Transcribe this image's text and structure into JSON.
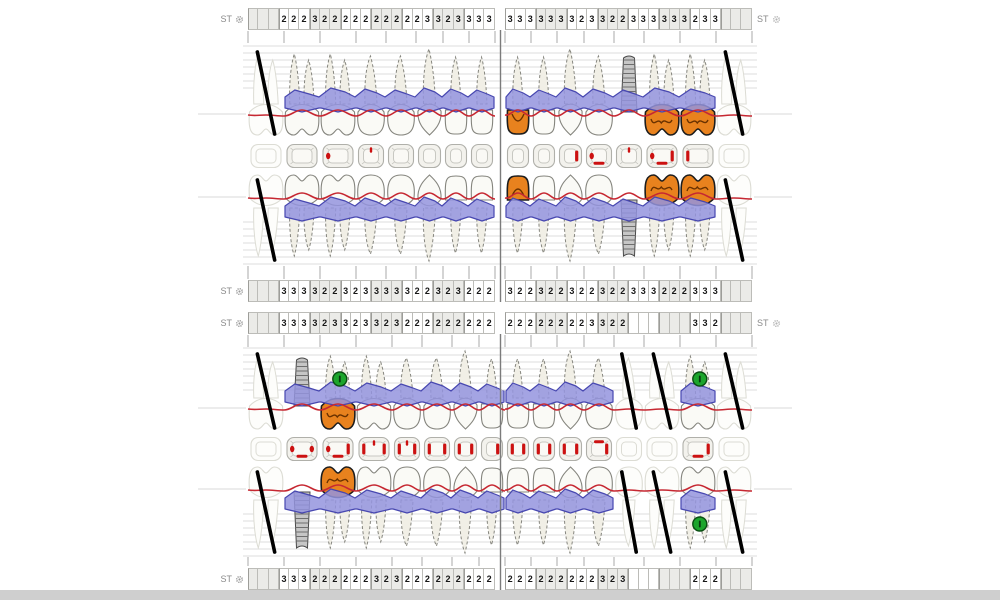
{
  "labels": {
    "st": "ST"
  },
  "colors": {
    "band_fill": "rgba(148,148,222,0.85)",
    "band_stroke": "#4747b0",
    "gingiva_line": "#c62832",
    "crown_restoration": "#e8821e",
    "crown_outline": "#1d1d1d",
    "tooth_fill": "#fafaf6",
    "tooth_stroke": "#85857e",
    "root_fill": "#f1efe6",
    "ghost_stroke": "#dcdcd4",
    "ghost_fill": "#fdfdfb",
    "implant_fill": "#c6c6c6",
    "implant_stroke": "#4a4a4a",
    "implant_ridge": "#6e6e6e",
    "marker_green": "#1ca52c",
    "marker_green_stroke": "#0a4d12",
    "mark_red": "#cc1111",
    "grid_line": "#dedede",
    "tick": "#a8a8a8",
    "divider": "#7b7b7b",
    "slash": "#000000"
  },
  "upper_chart": {
    "left": {
      "st_top": [
        "",
        "",
        "",
        "2",
        "2",
        "2",
        "3",
        "2",
        "2",
        "2",
        "2",
        "2",
        "2",
        "2",
        "2",
        "2",
        "2",
        "3",
        "3",
        "2",
        "3",
        "3",
        "3",
        "3"
      ],
      "st_bottom": [
        "",
        "",
        "",
        "3",
        "3",
        "3",
        "3",
        "2",
        "2",
        "3",
        "2",
        "3",
        "3",
        "3",
        "3",
        "3",
        "2",
        "2",
        "3",
        "2",
        "3",
        "2",
        "2",
        "2"
      ],
      "teeth": [
        {
          "type": "molar",
          "status": "missing"
        },
        {
          "type": "molar",
          "status": "present"
        },
        {
          "type": "molar",
          "status": "present"
        },
        {
          "type": "premolar",
          "status": "present"
        },
        {
          "type": "premolar",
          "status": "present"
        },
        {
          "type": "canine",
          "status": "present"
        },
        {
          "type": "incisor",
          "status": "present"
        },
        {
          "type": "incisor",
          "status": "present"
        }
      ],
      "occlusal": [
        [],
        [],
        [
          "l"
        ],
        [
          "t"
        ],
        [],
        [],
        [],
        []
      ]
    },
    "right": {
      "st_top": [
        "3",
        "3",
        "3",
        "3",
        "3",
        "3",
        "3",
        "2",
        "3",
        "3",
        "2",
        "2",
        "3",
        "3",
        "3",
        "3",
        "3",
        "3",
        "2",
        "3",
        "3",
        "",
        "",
        ""
      ],
      "st_bottom": [
        "3",
        "2",
        "2",
        "3",
        "2",
        "2",
        "3",
        "2",
        "2",
        "3",
        "2",
        "2",
        "3",
        "3",
        "3",
        "2",
        "2",
        "2",
        "3",
        "3",
        "3",
        "",
        "",
        ""
      ],
      "teeth": [
        {
          "type": "incisor",
          "status": "crown"
        },
        {
          "type": "incisor",
          "status": "present"
        },
        {
          "type": "canine",
          "status": "present"
        },
        {
          "type": "premolar",
          "status": "present"
        },
        {
          "type": "premolar",
          "status": "implant"
        },
        {
          "type": "molar",
          "status": "crown"
        },
        {
          "type": "molar",
          "status": "crown"
        },
        {
          "type": "molar",
          "status": "missing"
        }
      ],
      "occlusal": [
        [],
        [],
        [
          "R"
        ],
        [
          "l",
          "B"
        ],
        [
          "t"
        ],
        [
          "l",
          "B",
          "R"
        ],
        [
          "L"
        ],
        []
      ]
    }
  },
  "lower_chart": {
    "left": {
      "st_top": [
        "",
        "",
        "",
        "3",
        "3",
        "3",
        "3",
        "2",
        "3",
        "3",
        "2",
        "3",
        "3",
        "2",
        "3",
        "2",
        "2",
        "2",
        "2",
        "2",
        "2",
        "2",
        "2",
        "2"
      ],
      "st_bottom": [
        "",
        "",
        "",
        "3",
        "3",
        "3",
        "2",
        "2",
        "2",
        "2",
        "2",
        "2",
        "3",
        "2",
        "3",
        "2",
        "2",
        "2",
        "2",
        "2",
        "2",
        "2",
        "2",
        "2"
      ],
      "teeth": [
        {
          "type": "molar",
          "status": "missing"
        },
        {
          "type": "molar",
          "status": "implant"
        },
        {
          "type": "molar",
          "status": "crown",
          "green": [
            "top"
          ]
        },
        {
          "type": "molar",
          "status": "present"
        },
        {
          "type": "premolar",
          "status": "present"
        },
        {
          "type": "premolar",
          "status": "present"
        },
        {
          "type": "canine",
          "status": "present"
        },
        {
          "type": "incisor",
          "status": "present"
        }
      ],
      "occlusal": [
        [],
        [
          "l",
          "B",
          "r"
        ],
        [
          "l",
          "B",
          "R"
        ],
        [
          "t",
          "L",
          "R"
        ],
        [
          "t",
          "L",
          "R"
        ],
        [
          "L",
          "R"
        ],
        [
          "L",
          "R"
        ],
        [
          "R"
        ]
      ]
    },
    "right": {
      "st_top": [
        "2",
        "2",
        "2",
        "2",
        "2",
        "2",
        "2",
        "2",
        "3",
        "3",
        "2",
        "2",
        "",
        "",
        "",
        "",
        "",
        "",
        "3",
        "3",
        "2",
        "",
        "",
        ""
      ],
      "st_bottom": [
        "2",
        "2",
        "2",
        "2",
        "2",
        "2",
        "2",
        "2",
        "2",
        "3",
        "2",
        "3",
        "",
        "",
        "",
        "",
        "",
        "",
        "2",
        "2",
        "2",
        "",
        "",
        ""
      ],
      "teeth": [
        {
          "type": "incisor",
          "status": "present"
        },
        {
          "type": "incisor",
          "status": "present"
        },
        {
          "type": "canine",
          "status": "present"
        },
        {
          "type": "premolar",
          "status": "present"
        },
        {
          "type": "premolar",
          "status": "missing"
        },
        {
          "type": "molar",
          "status": "missing"
        },
        {
          "type": "molar",
          "status": "present",
          "green": [
            "top",
            "bottom"
          ]
        },
        {
          "type": "molar",
          "status": "missing"
        }
      ],
      "occlusal": [
        [
          "L",
          "R"
        ],
        [
          "L",
          "R"
        ],
        [
          "L",
          "R"
        ],
        [
          "T",
          "R"
        ],
        [],
        [],
        [
          "B",
          "R"
        ],
        []
      ]
    }
  }
}
